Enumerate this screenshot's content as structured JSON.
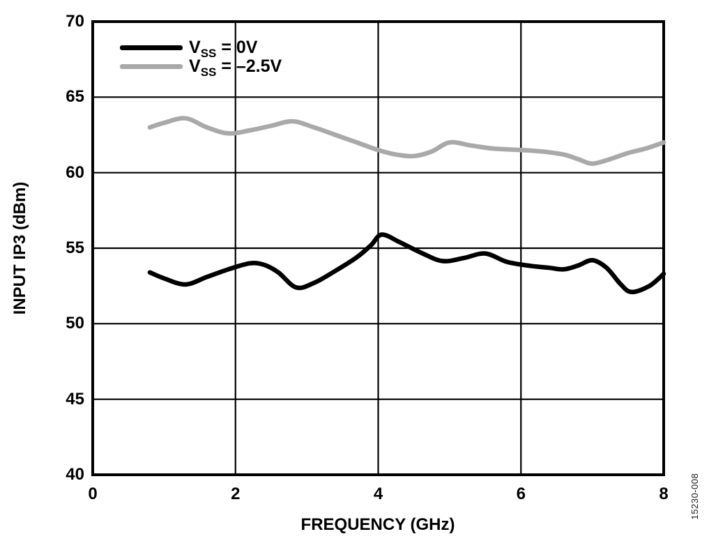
{
  "figure": {
    "watermark": "15230-008",
    "background": "#ffffff"
  },
  "chart_data": {
    "type": "line",
    "title": "",
    "xlabel": "FREQUENCY (GHz)",
    "ylabel": "INPUT IP3 (dBm)",
    "xlim": [
      0,
      8
    ],
    "ylim": [
      40,
      70
    ],
    "x_ticks": [
      0,
      2,
      4,
      6,
      8
    ],
    "y_ticks": [
      40,
      45,
      50,
      55,
      60,
      65,
      70
    ],
    "grid": true,
    "legend_position": "top-left-inside",
    "grid_color": "#000000",
    "series": [
      {
        "name": "VSS = 0V",
        "label": {
          "sym": "V",
          "sub": "SS",
          "rest": " = 0V"
        },
        "color": "#000000",
        "x": [
          0.8,
          1.0,
          1.3,
          1.6,
          1.9,
          2.2,
          2.4,
          2.6,
          2.85,
          3.1,
          3.4,
          3.7,
          3.9,
          4.05,
          4.3,
          4.6,
          4.9,
          5.2,
          5.5,
          5.8,
          6.1,
          6.4,
          6.6,
          6.8,
          7.0,
          7.2,
          7.4,
          7.55,
          7.8,
          8.0
        ],
        "y": [
          53.4,
          53.0,
          52.6,
          53.1,
          53.6,
          54.0,
          53.9,
          53.4,
          52.4,
          52.7,
          53.5,
          54.4,
          55.2,
          55.9,
          55.4,
          54.7,
          54.15,
          54.35,
          54.65,
          54.1,
          53.85,
          53.7,
          53.6,
          53.85,
          54.2,
          53.7,
          52.6,
          52.1,
          52.5,
          53.3
        ]
      },
      {
        "name": "VSS = –2.5V",
        "label": {
          "sym": "V",
          "sub": "SS",
          "rest": " = –2.5V"
        },
        "color": "#a9a9a9",
        "x": [
          0.8,
          1.0,
          1.3,
          1.6,
          1.9,
          2.2,
          2.5,
          2.8,
          3.1,
          3.4,
          3.7,
          4.0,
          4.25,
          4.5,
          4.75,
          5.0,
          5.3,
          5.6,
          6.0,
          6.3,
          6.6,
          6.8,
          7.0,
          7.25,
          7.5,
          7.75,
          8.0
        ],
        "y": [
          63.0,
          63.3,
          63.6,
          63.0,
          62.6,
          62.8,
          63.1,
          63.4,
          63.0,
          62.5,
          62.0,
          61.5,
          61.2,
          61.1,
          61.4,
          62.0,
          61.8,
          61.6,
          61.5,
          61.4,
          61.2,
          60.9,
          60.6,
          60.9,
          61.3,
          61.6,
          62.0
        ]
      }
    ]
  }
}
